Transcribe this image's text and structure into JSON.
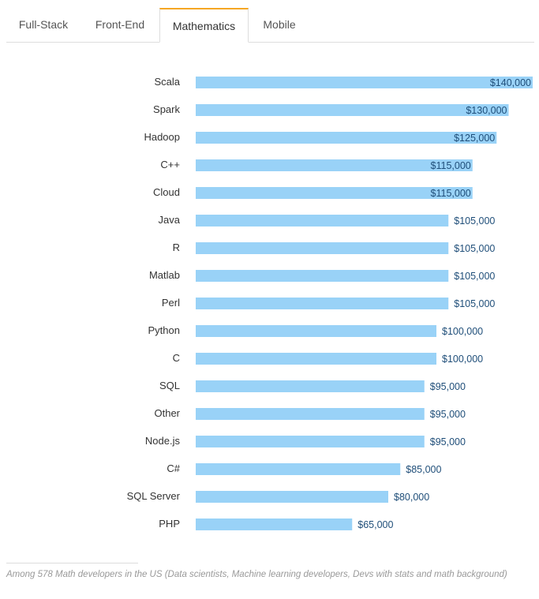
{
  "tabs": [
    {
      "label": "Full-Stack",
      "active": false
    },
    {
      "label": "Front-End",
      "active": false
    },
    {
      "label": "Mathematics",
      "active": true
    },
    {
      "label": "Mobile",
      "active": false
    }
  ],
  "colors": {
    "bar": "#99d2f7",
    "value_text": "#1f4e79",
    "tab_accent": "#f5a623"
  },
  "chart_data": {
    "type": "bar",
    "orientation": "horizontal",
    "categories": [
      "Scala",
      "Spark",
      "Hadoop",
      "C++",
      "Cloud",
      "Java",
      "R",
      "Matlab",
      "Perl",
      "Python",
      "C",
      "SQL",
      "Other",
      "Node.js",
      "C#",
      "SQL Server",
      "PHP"
    ],
    "values": [
      140000,
      130000,
      125000,
      115000,
      115000,
      105000,
      105000,
      105000,
      105000,
      100000,
      100000,
      95000,
      95000,
      95000,
      85000,
      80000,
      65000
    ],
    "value_labels": [
      "$140,000",
      "$130,000",
      "$125,000",
      "$115,000",
      "$115,000",
      "$105,000",
      "$105,000",
      "$105,000",
      "$105,000",
      "$100,000",
      "$100,000",
      "$95,000",
      "$95,000",
      "$95,000",
      "$85,000",
      "$80,000",
      "$65,000"
    ],
    "xlim": [
      0,
      140000
    ],
    "grid": false,
    "xlabel": "",
    "ylabel": ""
  },
  "footnote": "Among 578 Math developers in the US (Data scientists, Machine learning developers, Devs with stats and math background)"
}
